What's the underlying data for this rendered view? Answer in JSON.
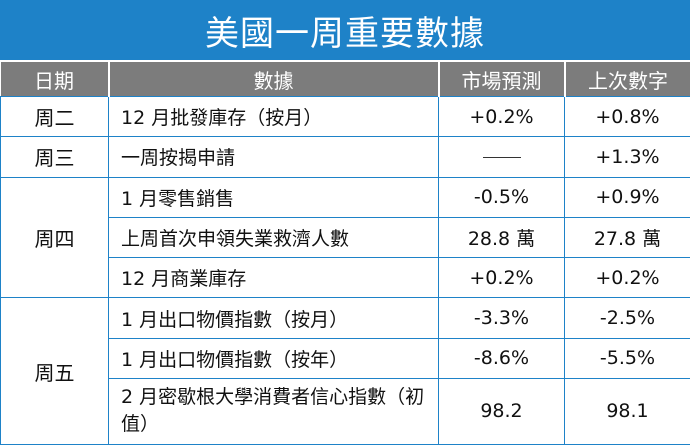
{
  "title": "美國一周重要數據",
  "headers": [
    "日期",
    "數據",
    "市場預測",
    "上次數字"
  ],
  "rows": [
    {
      "day": "周二",
      "item": "12 月批發庫存（按月）",
      "forecast": "+0.2%",
      "previous": "+0.8%"
    },
    {
      "day": "周三",
      "item": "一周按揭申請",
      "forecast": "",
      "previous": "+1.3%"
    },
    {
      "day": "周四",
      "item": "1 月零售銷售",
      "forecast": "-0.5%",
      "previous": "+0.9%"
    },
    {
      "day": "",
      "item": "上周首次申領失業救濟人數",
      "forecast": "28.8 萬",
      "previous": "27.8 萬"
    },
    {
      "day": "",
      "item": "12 月商業庫存",
      "forecast": "+0.2%",
      "previous": "+0.2%"
    },
    {
      "day": "周五",
      "item": "1 月出口物價指數（按月）",
      "forecast": "-3.3%",
      "previous": "-2.5%"
    },
    {
      "day": "",
      "item": "1 月出口物價指數（按年）",
      "forecast": "-8.6%",
      "previous": "-5.5%"
    },
    {
      "day": "",
      "item": "2 月密歇根大學消費者信心指數（初值）",
      "forecast": "98.2",
      "previous": "98.1"
    }
  ]
}
